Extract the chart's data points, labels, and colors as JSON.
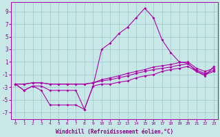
{
  "x": [
    0,
    1,
    2,
    3,
    4,
    5,
    6,
    7,
    8,
    9,
    10,
    11,
    12,
    13,
    14,
    15,
    16,
    17,
    18,
    19,
    20,
    21,
    22,
    23
  ],
  "line_peak": [
    -2.5,
    -3.5,
    -2.8,
    -2.8,
    -3.5,
    -3.5,
    -3.5,
    -3.5,
    -6.5,
    -2.8,
    3.0,
    4.0,
    5.5,
    6.5,
    8.0,
    9.5,
    8.0,
    4.5,
    2.5,
    1.0,
    0.8,
    -0.5,
    -1.2,
    0.3
  ],
  "line_zigzag": [
    -2.5,
    -3.5,
    -2.8,
    -3.5,
    -5.8,
    -5.8,
    -5.8,
    -5.8,
    -6.5,
    -2.8,
    -2.5,
    -2.5,
    -2.2,
    -2.0,
    -1.5,
    -1.2,
    -1.0,
    -0.5,
    -0.2,
    0.0,
    0.3,
    -0.5,
    -1.0,
    -0.5
  ],
  "line_flat1": [
    -2.5,
    -2.5,
    -2.3,
    -2.3,
    -2.5,
    -2.5,
    -2.5,
    -2.5,
    -2.5,
    -2.3,
    -2.0,
    -1.8,
    -1.5,
    -1.2,
    -0.8,
    -0.5,
    -0.2,
    0.0,
    0.2,
    0.5,
    0.7,
    -0.3,
    -0.8,
    -0.3
  ],
  "line_flat2": [
    -2.5,
    -2.5,
    -2.3,
    -2.3,
    -2.5,
    -2.5,
    -2.5,
    -2.5,
    -2.5,
    -2.3,
    -1.8,
    -1.5,
    -1.2,
    -0.8,
    -0.5,
    -0.2,
    0.2,
    0.4,
    0.6,
    0.9,
    1.0,
    0.0,
    -0.5,
    0.0
  ],
  "bg_color": "#c8e8e8",
  "line_color": "#aa00aa",
  "grid_color": "#9ec8c8",
  "xlabel": "Windchill (Refroidissement éolien,°C)",
  "ylabel_ticks": [
    -7,
    -5,
    -3,
    -1,
    1,
    3,
    5,
    7,
    9
  ],
  "xlim": [
    -0.5,
    23.5
  ],
  "ylim": [
    -8.0,
    10.5
  ],
  "tick_color": "#880088"
}
